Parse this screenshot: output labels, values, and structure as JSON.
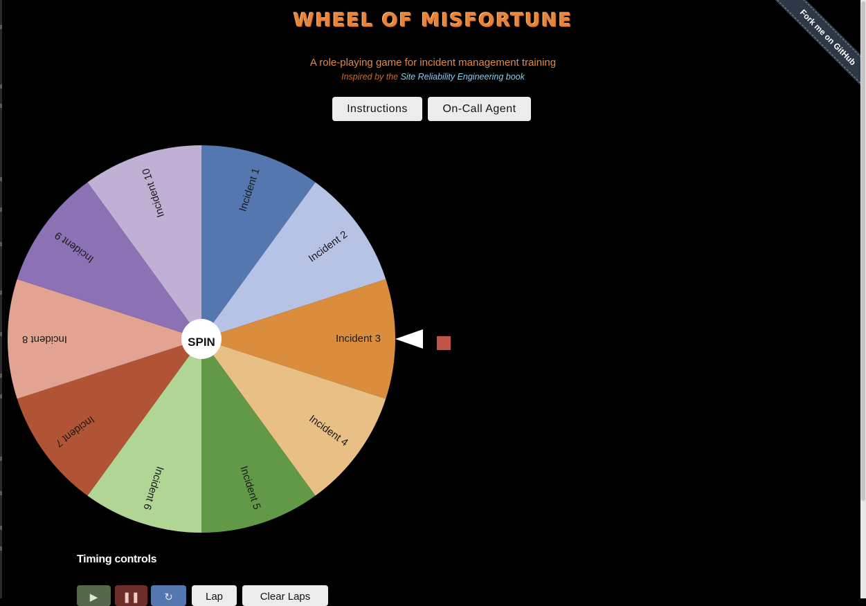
{
  "app": {
    "title": "Wheel of Misfortune",
    "subtitle": "A role-playing game for incident management training",
    "inspired_prefix": "Inspired by the ",
    "inspired_link": "Site Reliability Engineering book"
  },
  "nav": {
    "instructions_label": "Instructions",
    "oncall_label": "On-Call Agent"
  },
  "ribbon": {
    "label": "Fork me on GitHub"
  },
  "wheel": {
    "spin_label": "SPIN",
    "segments": [
      {
        "label": "Incident 1",
        "color": "#5577b0"
      },
      {
        "label": "Incident 2",
        "color": "#b7c3e4"
      },
      {
        "label": "Incident 3",
        "color": "#da8d3c"
      },
      {
        "label": "Incident 4",
        "color": "#e8bf84"
      },
      {
        "label": "Incident 5",
        "color": "#629947"
      },
      {
        "label": "Incident 6",
        "color": "#b1d595"
      },
      {
        "label": "Incident 7",
        "color": "#b15436"
      },
      {
        "label": "Incident 8",
        "color": "#e2a393"
      },
      {
        "label": "Incident 9",
        "color": "#8c72b5"
      },
      {
        "label": "Incident 10",
        "color": "#c0b0d4"
      }
    ]
  },
  "timing": {
    "title": "Timing controls",
    "play_icon": "play-icon",
    "pause_icon": "pause-icon",
    "reset_icon": "reset-icon",
    "lap_label": "Lap",
    "clear_laps_label": "Clear Laps"
  },
  "colors": {
    "title": "#e9833a",
    "subtitle": "#e08a45",
    "link": "#8ecbe8",
    "marker": "#c25446"
  }
}
